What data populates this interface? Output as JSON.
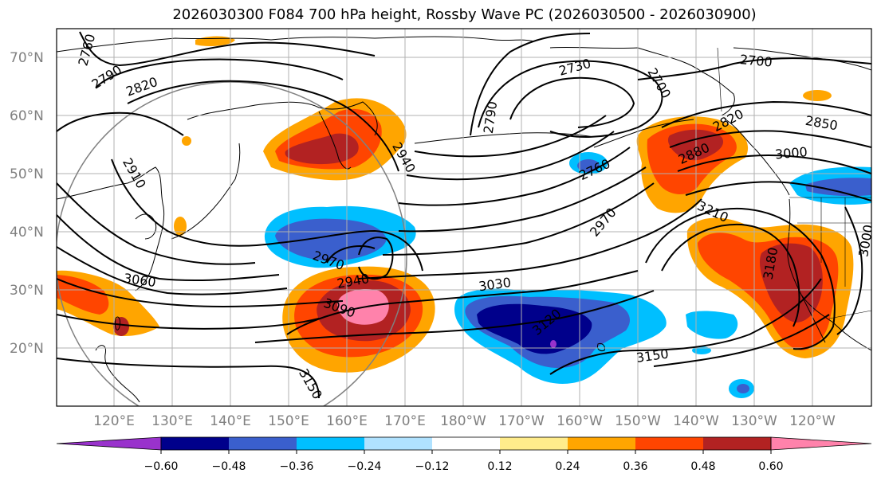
{
  "title": "2026030300 F084 700 hPa height, Rossby Wave PC (2026030500 - 2026030900)",
  "map": {
    "lat_labels": [
      "70°N",
      "60°N",
      "50°N",
      "40°N",
      "30°N",
      "20°N"
    ],
    "lon_labels": [
      "120°E",
      "130°E",
      "140°E",
      "150°E",
      "160°E",
      "170°E",
      "180°W",
      "170°W",
      "160°W",
      "150°W",
      "140°W",
      "130°W",
      "120°W"
    ],
    "contour_labels": [
      "2760",
      "2790",
      "2820",
      "2910",
      "3060",
      "2730",
      "2700",
      "2700",
      "2790",
      "2760",
      "2880",
      "2820",
      "2850",
      "2940",
      "3000",
      "2970",
      "3210",
      "3000",
      "2940",
      "3030",
      "3090",
      "3120",
      "3180",
      "3150",
      "3150",
      "2970"
    ]
  },
  "colorbar": {
    "ticks": [
      "−0.60",
      "−0.48",
      "−0.36",
      "−0.24",
      "−0.12",
      "0.12",
      "0.24",
      "0.36",
      "0.48",
      "0.60"
    ],
    "colors": [
      "#9932cc",
      "#00008b",
      "#3a5fcd",
      "#00bfff",
      "#b0e2ff",
      "#ffffff",
      "#ffec8b",
      "#ffa500",
      "#ff4500",
      "#b22222",
      "#ff82ab"
    ]
  },
  "colors": {
    "neg1": "#b0e2ff",
    "neg2": "#00bfff",
    "neg3": "#3a5fcd",
    "neg4": "#00008b",
    "neg5": "#9932cc",
    "pos1": "#ffec8b",
    "pos2": "#ffa500",
    "pos3": "#ff4500",
    "pos4": "#b22222",
    "pos5": "#ff82ab"
  }
}
